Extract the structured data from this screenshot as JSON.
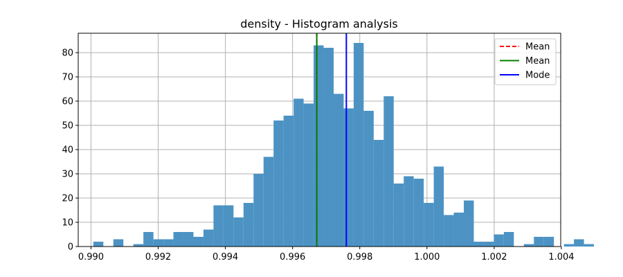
{
  "chart_data": {
    "type": "bar",
    "title": "density - Histogram analysis",
    "xlabel": "",
    "ylabel": "",
    "xlim": [
      0.98962,
      1.00398
    ],
    "ylim": [
      0,
      88
    ],
    "xticks": [
      0.99,
      0.992,
      0.994,
      0.996,
      0.998,
      1.0,
      1.002,
      1.004
    ],
    "xtick_labels": [
      "0.990",
      "0.992",
      "0.994",
      "0.996",
      "0.998",
      "1.000",
      "1.002",
      "1.004"
    ],
    "yticks": [
      0,
      10,
      20,
      30,
      40,
      50,
      60,
      70,
      80
    ],
    "ytick_labels": [
      "0",
      "10",
      "20",
      "30",
      "40",
      "50",
      "60",
      "70",
      "80"
    ],
    "grid": true,
    "bar_color": "#4c93c4",
    "bins_start": 0.99007,
    "bin_width": 0.000298,
    "counts": [
      2,
      0,
      3,
      0,
      1,
      6,
      3,
      3,
      6,
      6,
      4,
      7,
      17,
      17,
      12,
      18,
      30,
      37,
      52,
      54,
      61,
      59,
      83,
      82,
      63,
      57,
      84,
      56,
      44,
      62,
      26,
      29,
      28,
      18,
      33,
      13,
      14,
      19,
      2,
      2,
      5,
      6,
      0,
      1,
      4,
      4,
      0,
      1,
      3,
      1
    ],
    "lines": [
      {
        "name": "Mean",
        "x": 0.99672,
        "color": "#ff0000",
        "style": "dashed"
      },
      {
        "name": "Mean",
        "x": 0.99672,
        "color": "#008000",
        "style": "solid"
      },
      {
        "name": "Mode",
        "x": 0.9976,
        "color": "#0000ff",
        "style": "solid"
      }
    ],
    "legend_position": "top-right"
  }
}
